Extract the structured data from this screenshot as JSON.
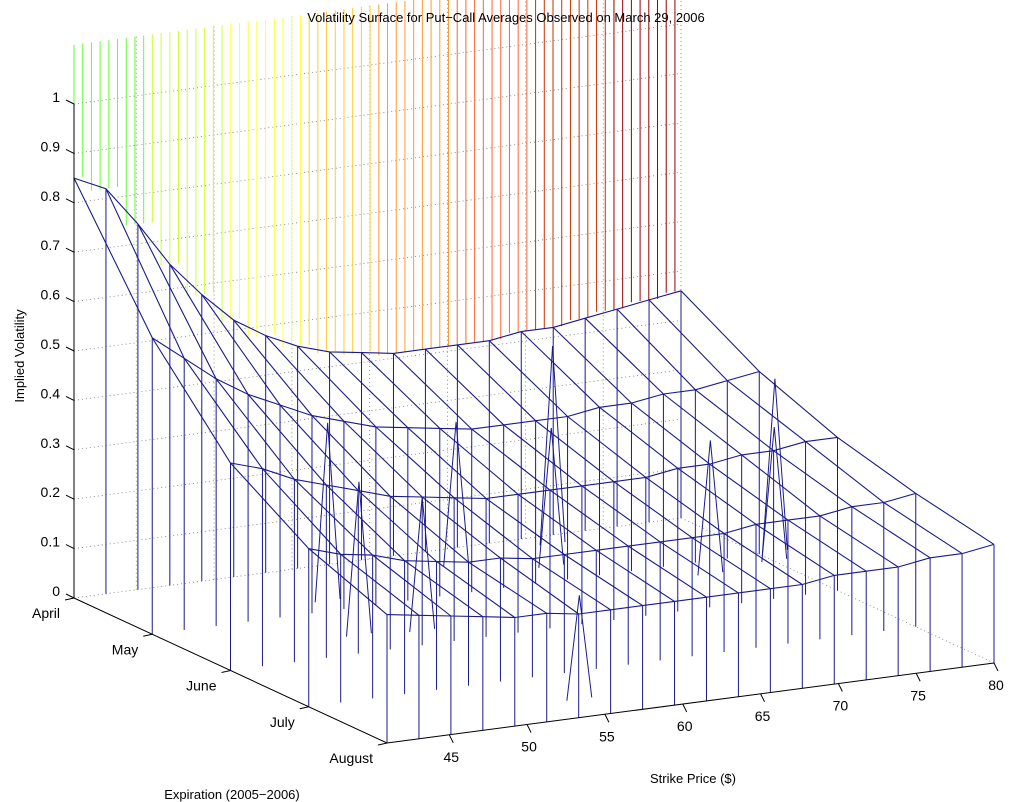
{
  "chart_data": {
    "type": "surface",
    "title": "Volatility Surface for Put−Call Averages Observed on March 29, 2006",
    "xlabel": "Strike Price ($)",
    "ylabel": "Expiration (2005−2006)",
    "zlabel": "Implied Volatility",
    "x_ticks": [
      "45",
      "50",
      "55",
      "60",
      "65",
      "70",
      "75",
      "80"
    ],
    "y_ticks": [
      "April",
      "May",
      "June",
      "July",
      "August"
    ],
    "z_ticks": [
      "0",
      "0.1",
      "0.2",
      "0.3",
      "0.4",
      "0.5",
      "0.6",
      "0.7",
      "0.8",
      "0.9",
      "1"
    ],
    "xlim": [
      41,
      80
    ],
    "zlim": [
      0,
      1
    ],
    "grid": true,
    "line_color": "#1a1a8c",
    "colormap": [
      "#66ff33",
      "#ccff33",
      "#ffff33",
      "#ffcc33",
      "#ff9933",
      "#ff6633",
      "#cc3300",
      "#990000"
    ],
    "series": [
      {
        "name": "April",
        "values": [
          0.85,
          0.82,
          0.74,
          0.65,
          0.58,
          0.52,
          0.48,
          0.45,
          0.43,
          0.42,
          0.41,
          0.41,
          0.41,
          0.41,
          0.42,
          0.42,
          0.43,
          0.44,
          0.45,
          0.46
        ]
      },
      {
        "name": "May",
        "values": [
          0.6,
          0.55,
          0.5,
          0.46,
          0.43,
          0.4,
          0.38,
          0.36,
          0.35,
          0.34,
          0.33,
          0.33,
          0.33,
          0.33,
          0.34,
          0.34,
          0.35,
          0.35,
          0.36,
          0.37
        ]
      },
      {
        "name": "June",
        "values": [
          0.42,
          0.4,
          0.37,
          0.35,
          0.33,
          0.31,
          0.3,
          0.29,
          0.28,
          0.28,
          0.28,
          0.28,
          0.28,
          0.28,
          0.29,
          0.29,
          0.3,
          0.3,
          0.31,
          0.31
        ]
      },
      {
        "name": "July",
        "values": [
          0.32,
          0.3,
          0.29,
          0.27,
          0.26,
          0.25,
          0.25,
          0.24,
          0.24,
          0.24,
          0.24,
          0.24,
          0.24,
          0.24,
          0.25,
          0.25,
          0.25,
          0.26,
          0.26,
          0.27
        ]
      },
      {
        "name": "August",
        "values": [
          0.26,
          0.25,
          0.24,
          0.23,
          0.22,
          0.22,
          0.21,
          0.21,
          0.21,
          0.21,
          0.21,
          0.21,
          0.21,
          0.21,
          0.22,
          0.22,
          0.22,
          0.23,
          0.23,
          0.24
        ]
      }
    ],
    "spikes": [
      [
        3,
        5,
        0.04
      ],
      [
        4,
        5,
        0.0
      ],
      [
        5,
        6,
        0.03
      ],
      [
        9,
        7,
        0.0
      ],
      [
        2,
        10,
        0.04
      ],
      [
        3,
        12,
        0.05
      ],
      [
        1,
        14,
        0.02
      ],
      [
        4,
        16,
        0.03
      ],
      [
        4,
        18,
        0.04
      ],
      [
        3,
        19,
        0.02
      ]
    ]
  }
}
